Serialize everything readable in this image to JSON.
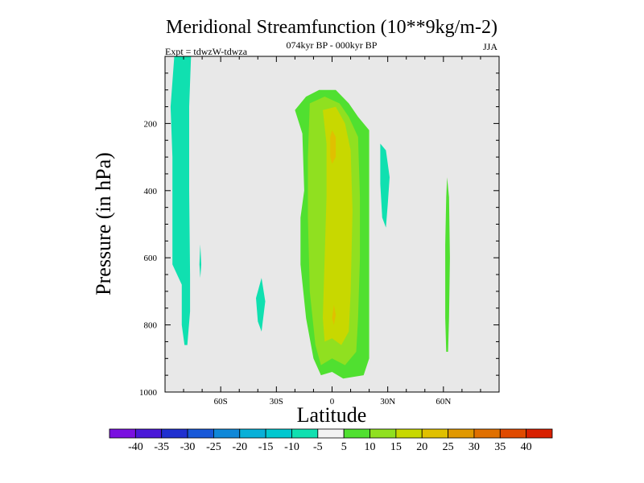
{
  "chart_data": {
    "type": "heatmap",
    "title": "Meridional Streamfunction (10**9kg/m-2)",
    "subtitle_center": "074kyr BP - 000kyr BP",
    "subtitle_left": "Expt = tdwzW-tdwza",
    "subtitle_right": "JJA",
    "xlabel": "Latitude",
    "ylabel": "Pressure (in hPa)",
    "xlim": [
      -90,
      90
    ],
    "ylim": [
      0,
      1000
    ],
    "y_inverted": true,
    "x_ticks": [
      {
        "value": -60,
        "label": "60S"
      },
      {
        "value": -30,
        "label": "30S"
      },
      {
        "value": 0,
        "label": "0"
      },
      {
        "value": 30,
        "label": "30N"
      },
      {
        "value": 60,
        "label": "60N"
      }
    ],
    "y_ticks": [
      {
        "value": 200,
        "label": "200"
      },
      {
        "value": 400,
        "label": "400"
      },
      {
        "value": 600,
        "label": "600"
      },
      {
        "value": 800,
        "label": "800"
      },
      {
        "value": 1000,
        "label": "1000"
      }
    ],
    "colorbar": {
      "levels": [
        -40,
        -35,
        -30,
        -25,
        -20,
        -15,
        -10,
        -5,
        5,
        10,
        15,
        20,
        25,
        30,
        35,
        40
      ],
      "labels": [
        "-40",
        "-35",
        "-30",
        "-25",
        "-20",
        "-15",
        "-10",
        "-5",
        "5",
        "10",
        "15",
        "20",
        "25",
        "30",
        "35",
        "40"
      ],
      "colors": [
        "#7a10e0",
        "#4a18d8",
        "#2030d0",
        "#1858d8",
        "#1088d8",
        "#08b0d8",
        "#00c8d0",
        "#10e0b0",
        "#f2f2f2",
        "#50e030",
        "#90e020",
        "#c8d800",
        "#e0c000",
        "#e09800",
        "#e07000",
        "#e04a00",
        "#d82000"
      ]
    },
    "field_background": "#e8e8e8",
    "regions": [
      {
        "name": "sh-high-lat-negative",
        "bin": "-10..-5",
        "color": "#10e0b0",
        "polygon": [
          [
            -83,
            0
          ],
          [
            -76,
            0
          ],
          [
            -77,
            150
          ],
          [
            -77,
            400
          ],
          [
            -76.5,
            650
          ],
          [
            -76.5,
            760
          ],
          [
            -78,
            860
          ],
          [
            -79.5,
            860
          ],
          [
            -81,
            800
          ],
          [
            -81,
            680
          ],
          [
            -86,
            620
          ],
          [
            -86,
            300
          ],
          [
            -87,
            150
          ],
          [
            -85,
            0
          ]
        ]
      },
      {
        "name": "sh-small-negative-a",
        "bin": "-10..-5",
        "color": "#10e0b0",
        "polygon": [
          [
            -71,
            560
          ],
          [
            -70.5,
            620
          ],
          [
            -71,
            660
          ],
          [
            -71.5,
            620
          ]
        ]
      },
      {
        "name": "sh-small-negative-b",
        "bin": "-10..-5",
        "color": "#10e0b0",
        "polygon": [
          [
            -38,
            660
          ],
          [
            -36,
            730
          ],
          [
            -38,
            820
          ],
          [
            -40,
            790
          ],
          [
            -41,
            720
          ]
        ]
      },
      {
        "name": "nh-sub-negative",
        "bin": "-10..-5",
        "color": "#10e0b0",
        "polygon": [
          [
            26,
            260
          ],
          [
            29,
            280
          ],
          [
            31,
            360
          ],
          [
            30,
            440
          ],
          [
            29,
            510
          ],
          [
            27,
            480
          ],
          [
            26,
            380
          ]
        ]
      },
      {
        "name": "cell-outer",
        "bin": "5..10",
        "color": "#50e030",
        "polygon": [
          [
            -14,
            120
          ],
          [
            -7,
            100
          ],
          [
            2,
            100
          ],
          [
            9,
            140
          ],
          [
            14,
            180
          ],
          [
            20,
            220
          ],
          [
            20,
            900
          ],
          [
            17,
            950
          ],
          [
            6,
            960
          ],
          [
            0,
            940
          ],
          [
            -6,
            950
          ],
          [
            -10,
            900
          ],
          [
            -14,
            780
          ],
          [
            -17,
            620
          ],
          [
            -17,
            480
          ],
          [
            -15,
            400
          ],
          [
            -16,
            230
          ],
          [
            -20,
            160
          ]
        ]
      },
      {
        "name": "cell-inner",
        "bin": "10..15",
        "color": "#90e020",
        "polygon": [
          [
            -12,
            140
          ],
          [
            -4,
            120
          ],
          [
            4,
            140
          ],
          [
            9,
            180
          ],
          [
            14,
            240
          ],
          [
            15,
            420
          ],
          [
            15,
            600
          ],
          [
            14,
            780
          ],
          [
            13,
            880
          ],
          [
            7,
            920
          ],
          [
            0,
            900
          ],
          [
            -6,
            920
          ],
          [
            -9,
            860
          ],
          [
            -12,
            700
          ],
          [
            -13,
            480
          ],
          [
            -13,
            300
          ]
        ]
      },
      {
        "name": "cell-core",
        "bin": "15..20",
        "color": "#c8d800",
        "polygon": [
          [
            -5,
            160
          ],
          [
            2,
            150
          ],
          [
            7,
            200
          ],
          [
            10,
            280
          ],
          [
            11,
            460
          ],
          [
            10,
            700
          ],
          [
            9,
            820
          ],
          [
            5,
            860
          ],
          [
            0,
            840
          ],
          [
            -4,
            850
          ],
          [
            -5,
            780
          ],
          [
            -4,
            600
          ],
          [
            -3,
            420
          ],
          [
            -3,
            260
          ]
        ]
      },
      {
        "name": "cell-max-upper",
        "bin": "20..25",
        "color": "#e0c000",
        "polygon": [
          [
            0,
            220
          ],
          [
            2,
            240
          ],
          [
            2,
            300
          ],
          [
            0,
            320
          ],
          [
            -1,
            300
          ],
          [
            -1,
            240
          ]
        ]
      },
      {
        "name": "cell-max-lower",
        "bin": "20..25",
        "color": "#e0c000",
        "polygon": [
          [
            1,
            740
          ],
          [
            2,
            770
          ],
          [
            1,
            800
          ],
          [
            0,
            780
          ]
        ]
      },
      {
        "name": "nh-high-lat-positive",
        "bin": "5..10",
        "color": "#50e030",
        "polygon": [
          [
            62,
            360
          ],
          [
            63,
            420
          ],
          [
            63.5,
            600
          ],
          [
            63,
            780
          ],
          [
            62.5,
            880
          ],
          [
            61.5,
            880
          ],
          [
            61,
            780
          ],
          [
            61,
            560
          ],
          [
            61.5,
            420
          ]
        ]
      }
    ]
  }
}
